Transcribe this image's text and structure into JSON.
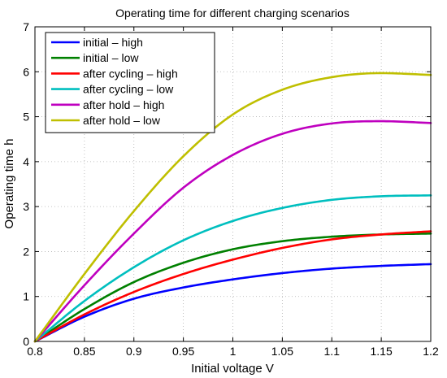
{
  "chart_data": {
    "type": "line",
    "title": "Operating time for different charging scenarios",
    "xlabel": "Initial voltage V",
    "ylabel": "Operating time h",
    "xlim": [
      0.8,
      1.2
    ],
    "ylim": [
      0,
      7
    ],
    "xticks": [
      0.8,
      0.85,
      0.9,
      0.95,
      1,
      1.05,
      1.1,
      1.15,
      1.2
    ],
    "xtick_labels": [
      "0.8",
      "0.85",
      "0.9",
      "0.95",
      "1",
      "1.05",
      "1.1",
      "1.15",
      "1.2"
    ],
    "yticks": [
      0,
      1,
      2,
      3,
      4,
      5,
      6,
      7
    ],
    "ytick_labels": [
      "0",
      "1",
      "2",
      "3",
      "4",
      "5",
      "6",
      "7"
    ],
    "grid": true,
    "legend_position": "top-left",
    "x": [
      0.8,
      0.85,
      0.9,
      0.95,
      1.0,
      1.05,
      1.1,
      1.15,
      1.2
    ],
    "series": [
      {
        "name": "initial – high",
        "color": "#0000ff",
        "values": [
          0,
          0.55,
          0.95,
          1.2,
          1.38,
          1.52,
          1.62,
          1.68,
          1.72
        ]
      },
      {
        "name": "initial – low",
        "color": "#008000",
        "values": [
          0,
          0.72,
          1.32,
          1.75,
          2.05,
          2.23,
          2.33,
          2.38,
          2.4
        ]
      },
      {
        "name": "after cycling – high",
        "color": "#ff0000",
        "values": [
          0,
          0.6,
          1.1,
          1.5,
          1.82,
          2.08,
          2.27,
          2.38,
          2.45
        ]
      },
      {
        "name": "after cycling – low",
        "color": "#00bfbf",
        "values": [
          0,
          0.9,
          1.65,
          2.25,
          2.68,
          2.97,
          3.15,
          3.23,
          3.25
        ]
      },
      {
        "name": "after hold – high",
        "color": "#bf00bf",
        "values": [
          0,
          1.25,
          2.4,
          3.42,
          4.15,
          4.62,
          4.85,
          4.9,
          4.86
        ]
      },
      {
        "name": "after hold – low",
        "color": "#bfbf00",
        "values": [
          0,
          1.5,
          2.9,
          4.12,
          5.05,
          5.6,
          5.88,
          5.97,
          5.93
        ]
      }
    ]
  }
}
